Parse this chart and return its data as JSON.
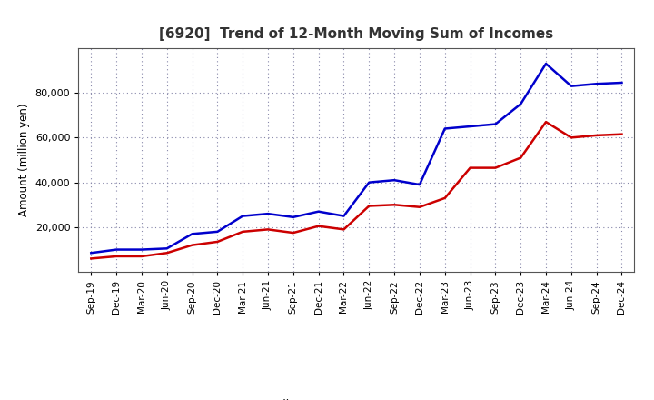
{
  "title": "[6920]  Trend of 12-Month Moving Sum of Incomes",
  "ylabel": "Amount (million yen)",
  "ylim": [
    0,
    100000
  ],
  "yticks": [
    20000,
    40000,
    60000,
    80000
  ],
  "ytick_labels": [
    "20,000",
    "40,000",
    "60,000",
    "80,000"
  ],
  "x_labels": [
    "Sep-19",
    "Dec-19",
    "Mar-20",
    "Jun-20",
    "Sep-20",
    "Dec-20",
    "Mar-21",
    "Jun-21",
    "Sep-21",
    "Dec-21",
    "Mar-22",
    "Jun-22",
    "Sep-22",
    "Dec-22",
    "Mar-23",
    "Jun-23",
    "Sep-23",
    "Dec-23",
    "Mar-24",
    "Jun-24",
    "Sep-24",
    "Dec-24"
  ],
  "ordinary_income": [
    8500,
    10000,
    10000,
    10500,
    17000,
    18000,
    25000,
    26000,
    24500,
    27000,
    25000,
    40000,
    41000,
    39000,
    64000,
    65000,
    66000,
    75000,
    93000,
    83000,
    84000,
    84500
  ],
  "net_income": [
    6000,
    7000,
    7000,
    8500,
    12000,
    13500,
    18000,
    19000,
    17500,
    20500,
    19000,
    29500,
    30000,
    29000,
    33000,
    46500,
    46500,
    51000,
    67000,
    60000,
    61000,
    61500
  ],
  "ordinary_color": "#0000cc",
  "net_color": "#cc0000",
  "bg_color": "#ffffff",
  "plot_bg_color": "#ffffff",
  "grid_color": "#8888aa",
  "line_width": 1.8,
  "title_fontsize": 11,
  "title_color": "#333333"
}
